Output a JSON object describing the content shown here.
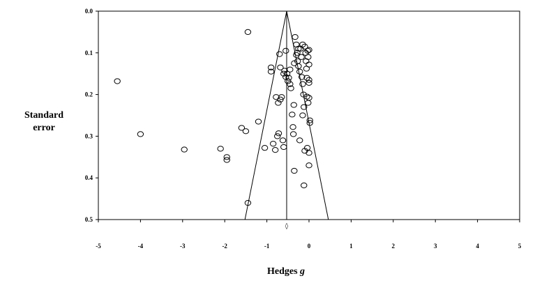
{
  "chart_data": {
    "type": "scatter",
    "title": "",
    "xlabel_main": "Hedges",
    "xlabel_italic": "g",
    "ylabel_line1": "Standard",
    "ylabel_line2": "error",
    "xlim": [
      -5,
      5
    ],
    "ylim": [
      0.0,
      0.5
    ],
    "y_inverted": true,
    "x_ticks": [
      "-5",
      "-4",
      "-3",
      "-2",
      "-1",
      "0",
      "1",
      "2",
      "3",
      "4",
      "5"
    ],
    "y_ticks": [
      "0.0",
      "0.1",
      "0.2",
      "0.3",
      "0.4",
      "0.5"
    ],
    "pooled_effect": -0.53,
    "funnel_lower_edge_se": 0.5,
    "funnel_x_at_lower_edge": [
      -1.52,
      0.46
    ],
    "summary_marker": "◊",
    "points": [
      [
        -4.55,
        0.168
      ],
      [
        -4.0,
        0.295
      ],
      [
        -2.96,
        0.332
      ],
      [
        -2.1,
        0.33
      ],
      [
        -1.95,
        0.35
      ],
      [
        -1.95,
        0.357
      ],
      [
        -1.45,
        0.05
      ],
      [
        -1.45,
        0.46
      ],
      [
        -1.5,
        0.288
      ],
      [
        -1.6,
        0.28
      ],
      [
        -1.2,
        0.265
      ],
      [
        -1.05,
        0.328
      ],
      [
        -0.9,
        0.145
      ],
      [
        -0.85,
        0.318
      ],
      [
        -0.8,
        0.333
      ],
      [
        -0.75,
        0.3
      ],
      [
        -0.72,
        0.293
      ],
      [
        -0.78,
        0.206
      ],
      [
        -0.73,
        0.22
      ],
      [
        -0.68,
        0.135
      ],
      [
        -0.7,
        0.103
      ],
      [
        -0.65,
        0.206
      ],
      [
        -0.62,
        0.31
      ],
      [
        -0.6,
        0.326
      ],
      [
        -0.58,
        0.143
      ],
      [
        -0.55,
        0.095
      ],
      [
        -0.55,
        0.158
      ],
      [
        -0.52,
        0.15
      ],
      [
        -0.5,
        0.168
      ],
      [
        -0.48,
        0.16
      ],
      [
        -0.45,
        0.175
      ],
      [
        -0.43,
        0.185
      ],
      [
        -0.4,
        0.248
      ],
      [
        -0.38,
        0.278
      ],
      [
        -0.37,
        0.295
      ],
      [
        -0.36,
        0.225
      ],
      [
        -0.35,
        0.383
      ],
      [
        -0.33,
        0.062
      ],
      [
        -0.3,
        0.08
      ],
      [
        -0.28,
        0.1
      ],
      [
        -0.27,
        0.12
      ],
      [
        -0.25,
        0.132
      ],
      [
        -0.22,
        0.145
      ],
      [
        -0.2,
        0.09
      ],
      [
        -0.18,
        0.11
      ],
      [
        -0.17,
        0.158
      ],
      [
        -0.15,
        0.175
      ],
      [
        -0.15,
        0.25
      ],
      [
        -0.13,
        0.2
      ],
      [
        -0.12,
        0.23
      ],
      [
        -0.1,
        0.085
      ],
      [
        -0.1,
        0.335
      ],
      [
        -0.08,
        0.1
      ],
      [
        -0.07,
        0.12
      ],
      [
        -0.06,
        0.138
      ],
      [
        -0.05,
        0.16
      ],
      [
        -0.05,
        0.205
      ],
      [
        -0.04,
        0.328
      ],
      [
        -0.03,
        0.095
      ],
      [
        -0.02,
        0.11
      ],
      [
        0.0,
        0.128
      ],
      [
        0.0,
        0.172
      ],
      [
        -0.02,
        0.22
      ],
      [
        0.0,
        0.208
      ],
      [
        0.0,
        0.34
      ],
      [
        0.0,
        0.37
      ],
      [
        0.0,
        0.165
      ],
      [
        0.0,
        0.093
      ],
      [
        -0.12,
        0.418
      ],
      [
        -0.9,
        0.135
      ],
      [
        -0.25,
        0.09
      ],
      [
        -0.35,
        0.125
      ],
      [
        -0.45,
        0.14
      ],
      [
        -0.6,
        0.15
      ],
      [
        -0.68,
        0.212
      ],
      [
        0.02,
        0.262
      ],
      [
        0.02,
        0.268
      ],
      [
        -0.3,
        0.105
      ],
      [
        -0.15,
        0.08
      ],
      [
        -0.22,
        0.31
      ]
    ]
  }
}
